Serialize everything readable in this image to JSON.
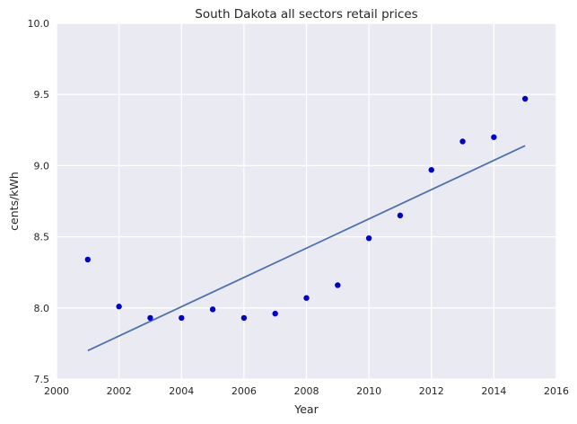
{
  "chart_data": {
    "type": "scatter",
    "title": "South Dakota   all sectors retail prices",
    "xlabel": "Year",
    "ylabel": "cents/kWh",
    "xlim": [
      2000,
      2016
    ],
    "ylim": [
      7.5,
      10.0
    ],
    "xticks": [
      2000,
      2002,
      2004,
      2006,
      2008,
      2010,
      2012,
      2014,
      2016
    ],
    "yticks": [
      "7.5",
      "8.0",
      "8.5",
      "9.0",
      "9.5",
      "10.0"
    ],
    "grid": true,
    "series": [
      {
        "type": "scatter",
        "color": "#0000cc",
        "points": [
          {
            "x": 2001,
            "y": 8.34
          },
          {
            "x": 2002,
            "y": 8.01
          },
          {
            "x": 2003,
            "y": 7.93
          },
          {
            "x": 2004,
            "y": 7.93
          },
          {
            "x": 2005,
            "y": 7.99
          },
          {
            "x": 2006,
            "y": 7.93
          },
          {
            "x": 2007,
            "y": 7.96
          },
          {
            "x": 2008,
            "y": 8.07
          },
          {
            "x": 2009,
            "y": 8.16
          },
          {
            "x": 2010,
            "y": 8.49
          },
          {
            "x": 2011,
            "y": 8.65
          },
          {
            "x": 2012,
            "y": 8.97
          },
          {
            "x": 2013,
            "y": 9.17
          },
          {
            "x": 2014,
            "y": 9.2
          },
          {
            "x": 2015,
            "y": 9.47
          }
        ]
      },
      {
        "type": "line",
        "color": "#4c72b0",
        "points": [
          {
            "x": 2001,
            "y": 7.7
          },
          {
            "x": 2015,
            "y": 9.14
          }
        ]
      }
    ]
  }
}
